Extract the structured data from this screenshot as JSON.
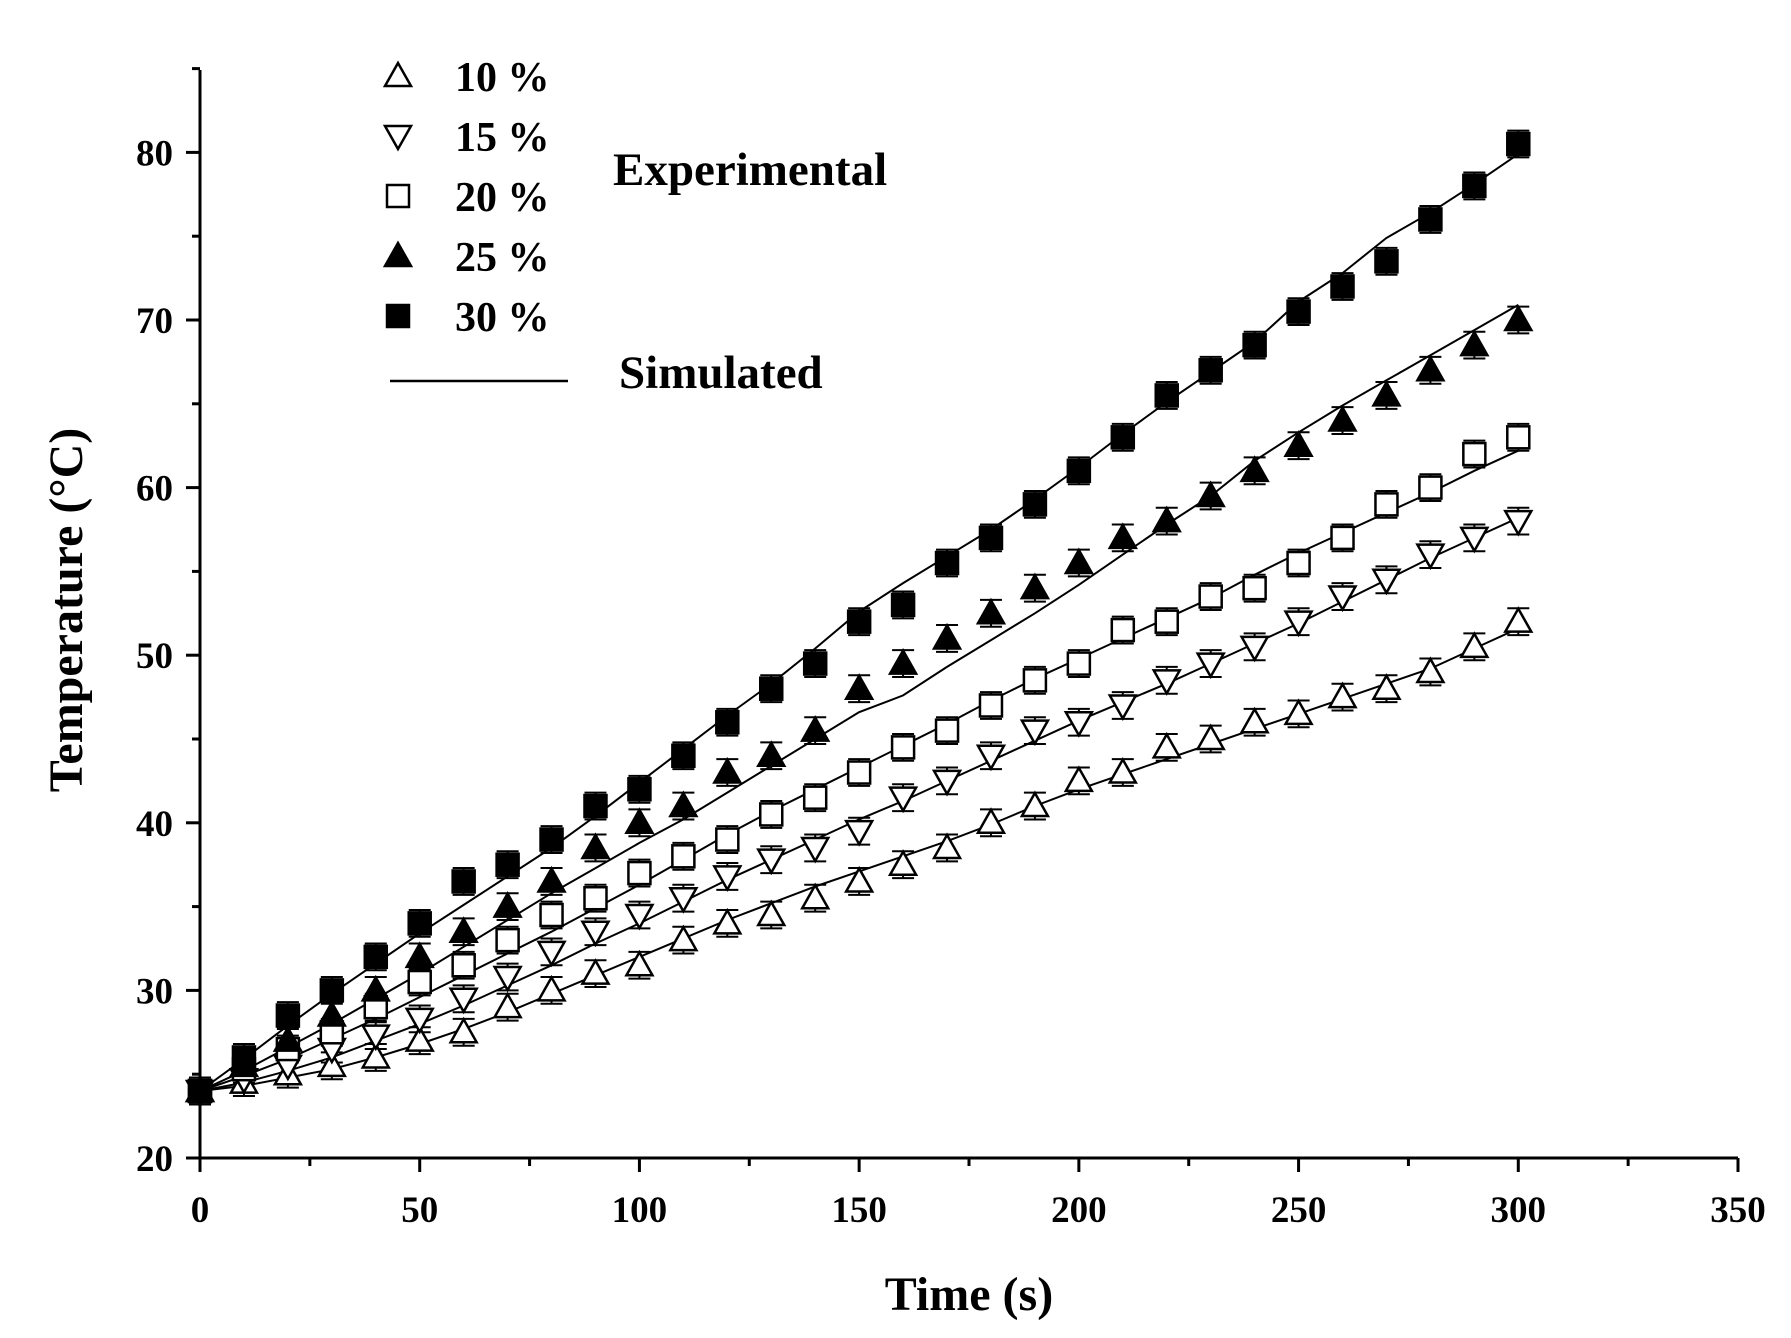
{
  "chart_data": {
    "type": "scatter",
    "xlabel": "Time (s)",
    "ylabel": "Temperature (°C)",
    "xlim": [
      0,
      350
    ],
    "ylim": [
      20,
      85
    ],
    "x_ticks": [
      "0",
      "50",
      "100",
      "150",
      "200",
      "250",
      "300",
      "350"
    ],
    "y_ticks": [
      "20",
      "30",
      "40",
      "50",
      "60",
      "70",
      "80"
    ],
    "grid": false,
    "legend_position": "top-left",
    "experimental_label": "Experimental",
    "simulated_label": "Simulated",
    "x": [
      0,
      10,
      20,
      30,
      40,
      50,
      60,
      70,
      80,
      90,
      100,
      110,
      120,
      130,
      140,
      150,
      160,
      170,
      180,
      190,
      200,
      210,
      220,
      230,
      240,
      250,
      260,
      270,
      280,
      290,
      300
    ],
    "series": [
      {
        "name": "10 %",
        "marker": "triangle-up-open",
        "experimental": [
          24,
          24.5,
          25,
          25.5,
          26,
          27,
          27.5,
          29,
          30,
          31,
          31.5,
          33,
          34,
          34.5,
          35.5,
          36.5,
          37.5,
          38.5,
          40,
          41,
          42.5,
          43,
          44.5,
          45,
          46,
          46.5,
          47.5,
          48,
          49,
          50.5,
          52
        ],
        "error": [
          0.8,
          0.8,
          0.8,
          0.8,
          0.8,
          0.8,
          0.8,
          0.8,
          0.8,
          0.8,
          0.8,
          0.8,
          0.8,
          0.8,
          0.8,
          0.8,
          0.8,
          0.8,
          0.8,
          0.8,
          0.8,
          0.8,
          0.8,
          0.8,
          0.8,
          0.8,
          0.8,
          0.8,
          0.8,
          0.8,
          0.8
        ],
        "simulated": [
          24,
          24.3,
          24.8,
          25.3,
          26,
          26.8,
          27.7,
          28.7,
          29.8,
          30.9,
          32,
          33.1,
          34.2,
          35.2,
          36.2,
          37.1,
          38,
          38.9,
          39.9,
          41,
          42,
          42.9,
          43.8,
          44.7,
          45.6,
          46.5,
          47.4,
          48.3,
          49.2,
          50.4,
          51.6
        ]
      },
      {
        "name": "15 %",
        "marker": "triangle-down-open",
        "experimental": [
          24,
          24.7,
          25.5,
          26.5,
          27.3,
          28.3,
          29.5,
          30.8,
          32.3,
          33.5,
          34.5,
          35.5,
          36.8,
          37.8,
          38.5,
          39.5,
          41.5,
          42.5,
          44,
          45.5,
          46,
          47,
          48.5,
          49.5,
          50.5,
          52,
          53.5,
          54.5,
          56,
          57,
          58
        ],
        "error": [
          0.8,
          0.8,
          0.8,
          0.8,
          0.8,
          0.8,
          0.8,
          0.8,
          0.8,
          0.8,
          0.8,
          0.8,
          0.8,
          0.8,
          0.8,
          0.8,
          0.8,
          0.8,
          0.8,
          0.8,
          0.8,
          0.8,
          0.8,
          0.8,
          0.8,
          0.8,
          0.8,
          0.8,
          0.8,
          0.8,
          0.8
        ],
        "simulated": [
          24,
          24.5,
          25.2,
          26,
          27,
          28,
          29.1,
          30.3,
          31.5,
          32.8,
          34,
          35.3,
          36.6,
          37.8,
          39,
          40.2,
          41.3,
          42.5,
          43.7,
          44.9,
          46.1,
          47.2,
          48.3,
          49.5,
          50.7,
          51.9,
          53.2,
          54.5,
          55.8,
          57,
          58.2
        ]
      },
      {
        "name": "20 %",
        "marker": "square-open",
        "experimental": [
          24,
          25.3,
          26.5,
          27.5,
          29,
          30.5,
          31.5,
          33,
          34.5,
          35.5,
          37,
          38,
          39,
          40.5,
          41.5,
          43,
          44.5,
          45.5,
          47,
          48.5,
          49.5,
          51.5,
          52,
          53.5,
          54,
          55.5,
          57,
          59,
          60,
          62,
          63
        ],
        "error": [
          0.8,
          0.8,
          0.8,
          0.8,
          0.8,
          0.8,
          0.8,
          0.8,
          0.8,
          0.8,
          0.8,
          0.8,
          0.8,
          0.8,
          0.8,
          0.8,
          0.8,
          0.8,
          0.8,
          0.8,
          0.8,
          0.8,
          0.8,
          0.8,
          0.8,
          0.8,
          0.8,
          0.8,
          0.8,
          0.8,
          0.8
        ],
        "simulated": [
          24,
          24.9,
          25.9,
          27.1,
          28.3,
          29.6,
          30.9,
          32.2,
          33.5,
          34.9,
          36.3,
          37.8,
          39.3,
          40.7,
          42,
          43.3,
          44.6,
          45.9,
          47.3,
          48.6,
          49.8,
          51,
          52.2,
          53.4,
          54.8,
          56.1,
          57.3,
          58.5,
          59.7,
          61,
          62.2
        ]
      },
      {
        "name": "25 %",
        "marker": "triangle-up-filled",
        "experimental": [
          24,
          25.5,
          27,
          28.5,
          30,
          32,
          33.5,
          35,
          36.5,
          38.5,
          40,
          41,
          43,
          44,
          45.5,
          48,
          49.5,
          51,
          52.5,
          54,
          55.5,
          57,
          58,
          59.5,
          61,
          62.5,
          64,
          65.5,
          67,
          68.5,
          70
        ],
        "error": [
          0.8,
          0.8,
          0.8,
          0.8,
          0.8,
          0.8,
          0.8,
          0.8,
          0.8,
          0.8,
          0.8,
          0.8,
          0.8,
          0.8,
          0.8,
          0.8,
          0.8,
          0.8,
          0.8,
          0.8,
          0.8,
          0.8,
          0.8,
          0.8,
          0.8,
          0.8,
          0.8,
          0.8,
          0.8,
          0.8,
          0.8
        ],
        "simulated": [
          24,
          25.2,
          26.6,
          28,
          29.5,
          31,
          32.6,
          34.2,
          35.8,
          37.3,
          38.8,
          40.2,
          41.8,
          43.4,
          45,
          46.6,
          47.6,
          49.3,
          50.9,
          52.5,
          54.2,
          56,
          57.8,
          59.5,
          61.6,
          63.3,
          64.9,
          66.4,
          67.9,
          69.4,
          70.9
        ]
      },
      {
        "name": "30 %",
        "marker": "square-filled",
        "experimental": [
          24,
          26,
          28.5,
          30,
          32,
          34,
          36.5,
          37.5,
          39,
          41,
          42,
          44,
          46,
          48,
          49.5,
          52,
          53,
          55.5,
          57,
          59,
          61,
          63,
          65.5,
          67,
          68.5,
          70.5,
          72,
          73.5,
          76,
          78,
          80.5
        ],
        "error": [
          0.8,
          0.8,
          0.8,
          0.8,
          0.8,
          0.8,
          0.8,
          0.8,
          0.8,
          0.8,
          0.8,
          0.8,
          0.8,
          0.8,
          0.8,
          0.8,
          0.8,
          0.8,
          0.8,
          0.8,
          0.8,
          0.8,
          0.8,
          0.8,
          0.8,
          0.8,
          0.8,
          0.8,
          0.8,
          0.8,
          0.8
        ],
        "simulated": [
          24,
          25.9,
          27.9,
          29.8,
          31.6,
          33.4,
          35.1,
          36.8,
          38.5,
          40.4,
          42.4,
          44.4,
          46.4,
          48.3,
          50.4,
          52.6,
          54.3,
          55.9,
          57.5,
          59.3,
          61.2,
          63.2,
          65.1,
          66.9,
          68.7,
          71.1,
          72.8,
          74.9,
          76.4,
          78.1,
          79.9
        ]
      }
    ]
  }
}
